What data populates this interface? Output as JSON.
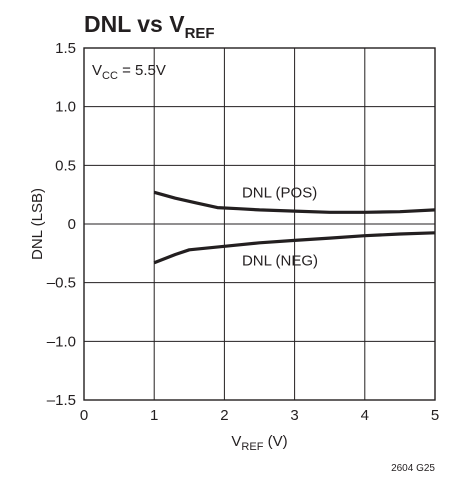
{
  "chart_data": {
    "type": "line",
    "title": {
      "main": "DNL vs V",
      "sub": "REF"
    },
    "xlabel": {
      "main": "V",
      "sub": "REF",
      "unit": " (V)"
    },
    "ylabel": "DNL (LSB)",
    "xlim": [
      0,
      5
    ],
    "ylim": [
      -1.5,
      1.5
    ],
    "x_ticks": [
      {
        "value": 0,
        "label": "0"
      },
      {
        "value": 1,
        "label": "1"
      },
      {
        "value": 2,
        "label": "2"
      },
      {
        "value": 3,
        "label": "3"
      },
      {
        "value": 4,
        "label": "4"
      },
      {
        "value": 5,
        "label": "5"
      }
    ],
    "y_ticks": [
      {
        "value": 1.5,
        "label": "1.5"
      },
      {
        "value": 1.0,
        "label": "1.0"
      },
      {
        "value": 0.5,
        "label": "0.5"
      },
      {
        "value": 0,
        "label": "0"
      },
      {
        "value": -0.5,
        "label": "–0.5"
      },
      {
        "value": -1.0,
        "label": "–1.0"
      },
      {
        "value": -1.5,
        "label": "–1.5"
      }
    ],
    "grid": true,
    "condition": {
      "main": "V",
      "sub": "CC",
      "rest": " = 5.5V"
    },
    "series": [
      {
        "name": "DNL (POS)",
        "x": [
          1.0,
          1.3,
          1.6,
          1.9,
          2.2,
          2.5,
          3.0,
          3.5,
          4.0,
          4.5,
          5.0
        ],
        "y": [
          0.27,
          0.22,
          0.18,
          0.14,
          0.13,
          0.12,
          0.11,
          0.1,
          0.1,
          0.105,
          0.12
        ]
      },
      {
        "name": "DNL (NEG)",
        "x": [
          1.0,
          1.3,
          1.5,
          2.0,
          2.5,
          3.0,
          3.5,
          4.0,
          4.5,
          5.0
        ],
        "y": [
          -0.33,
          -0.26,
          -0.22,
          -0.19,
          -0.16,
          -0.14,
          -0.12,
          -0.1,
          -0.085,
          -0.075
        ]
      }
    ],
    "annotations": [
      {
        "text": "DNL (POS)",
        "x": 2.25,
        "y": 0.27
      },
      {
        "text": "DNL (NEG)",
        "x": 2.25,
        "y": -0.31
      }
    ],
    "figure_id": "2604 G25",
    "colors": {
      "ink": "#231f20",
      "background": "#ffffff"
    }
  }
}
